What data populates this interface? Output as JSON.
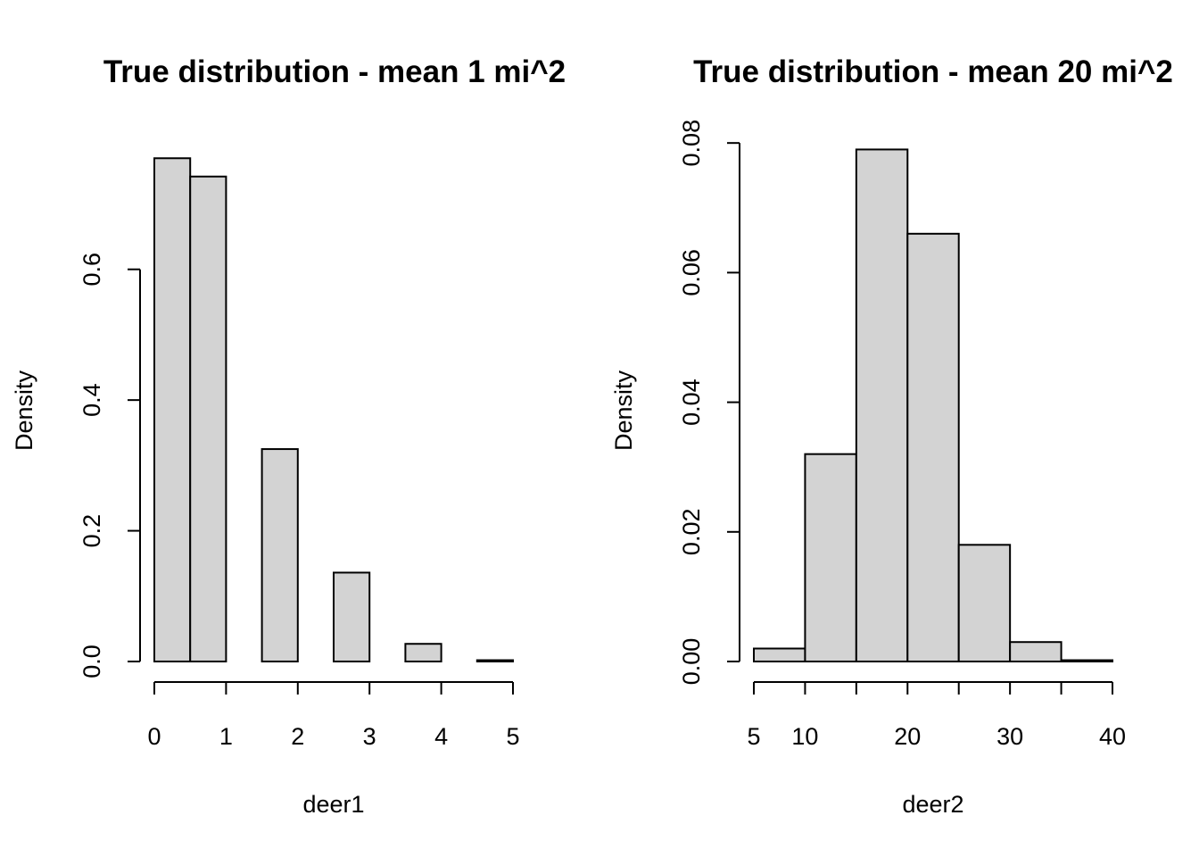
{
  "chart_data": [
    {
      "type": "bar",
      "title": "True distribution - mean 1 mi^2",
      "xlabel": "deer1",
      "ylabel": "Density",
      "bin_edges": [
        0,
        0.5,
        1,
        1.5,
        2,
        2.5,
        3,
        3.5,
        4,
        4.5,
        5
      ],
      "values": [
        0.77,
        0.742,
        0,
        0.325,
        0,
        0.136,
        0,
        0.027,
        0,
        0.002
      ],
      "xlim": [
        0,
        5
      ],
      "ylim": [
        0,
        0.8
      ],
      "x_ticks": [
        0,
        1,
        2,
        3,
        4,
        5
      ],
      "x_tick_labels": [
        "0",
        "1",
        "2",
        "3",
        "4",
        "5"
      ],
      "y_ticks": [
        0,
        0.2,
        0.4,
        0.6
      ],
      "y_tick_labels": [
        "0.0",
        "0.2",
        "0.4",
        "0.6"
      ],
      "bar_color": "#d3d3d3"
    },
    {
      "type": "bar",
      "title": "True distribution - mean 20 mi^2",
      "xlabel": "deer2",
      "ylabel": "Density",
      "bin_edges": [
        5,
        10,
        15,
        20,
        25,
        30,
        35,
        40
      ],
      "values": [
        0.002,
        0.032,
        0.079,
        0.066,
        0.018,
        0.003,
        0.0002
      ],
      "xlim": [
        5,
        40
      ],
      "ylim": [
        0,
        0.08
      ],
      "x_ticks": [
        5,
        10,
        15,
        20,
        25,
        30,
        35,
        40
      ],
      "x_tick_labels": [
        "5",
        "10",
        "",
        "20",
        "",
        "30",
        "",
        "40"
      ],
      "y_ticks": [
        0,
        0.02,
        0.04,
        0.06,
        0.08
      ],
      "y_tick_labels": [
        "0.00",
        "0.02",
        "0.04",
        "0.06",
        "0.08"
      ],
      "bar_color": "#d3d3d3"
    }
  ]
}
